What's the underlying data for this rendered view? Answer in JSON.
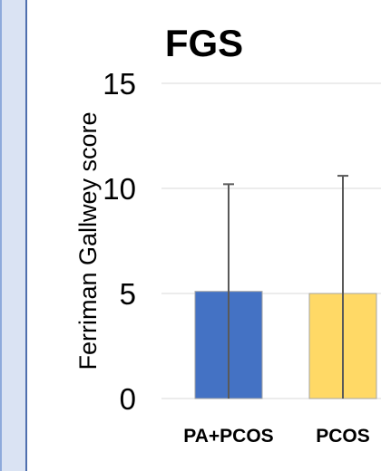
{
  "chart_data": {
    "type": "bar",
    "title": "FGS",
    "ylabel": "Ferriman Gallwey score",
    "xlabel": "",
    "ylim": [
      0,
      15
    ],
    "yticks": [
      0,
      5,
      10,
      15
    ],
    "grid": true,
    "categories": [
      "PA+PCOS",
      "PCOS"
    ],
    "series": [
      {
        "values": [
          5.1,
          5.0
        ],
        "errors": [
          5.1,
          5.6
        ],
        "colors": [
          "#4472c4",
          "#ffd966"
        ]
      }
    ],
    "error_bar_color": "#595959",
    "bar_border_color": "#a6a6a6"
  }
}
